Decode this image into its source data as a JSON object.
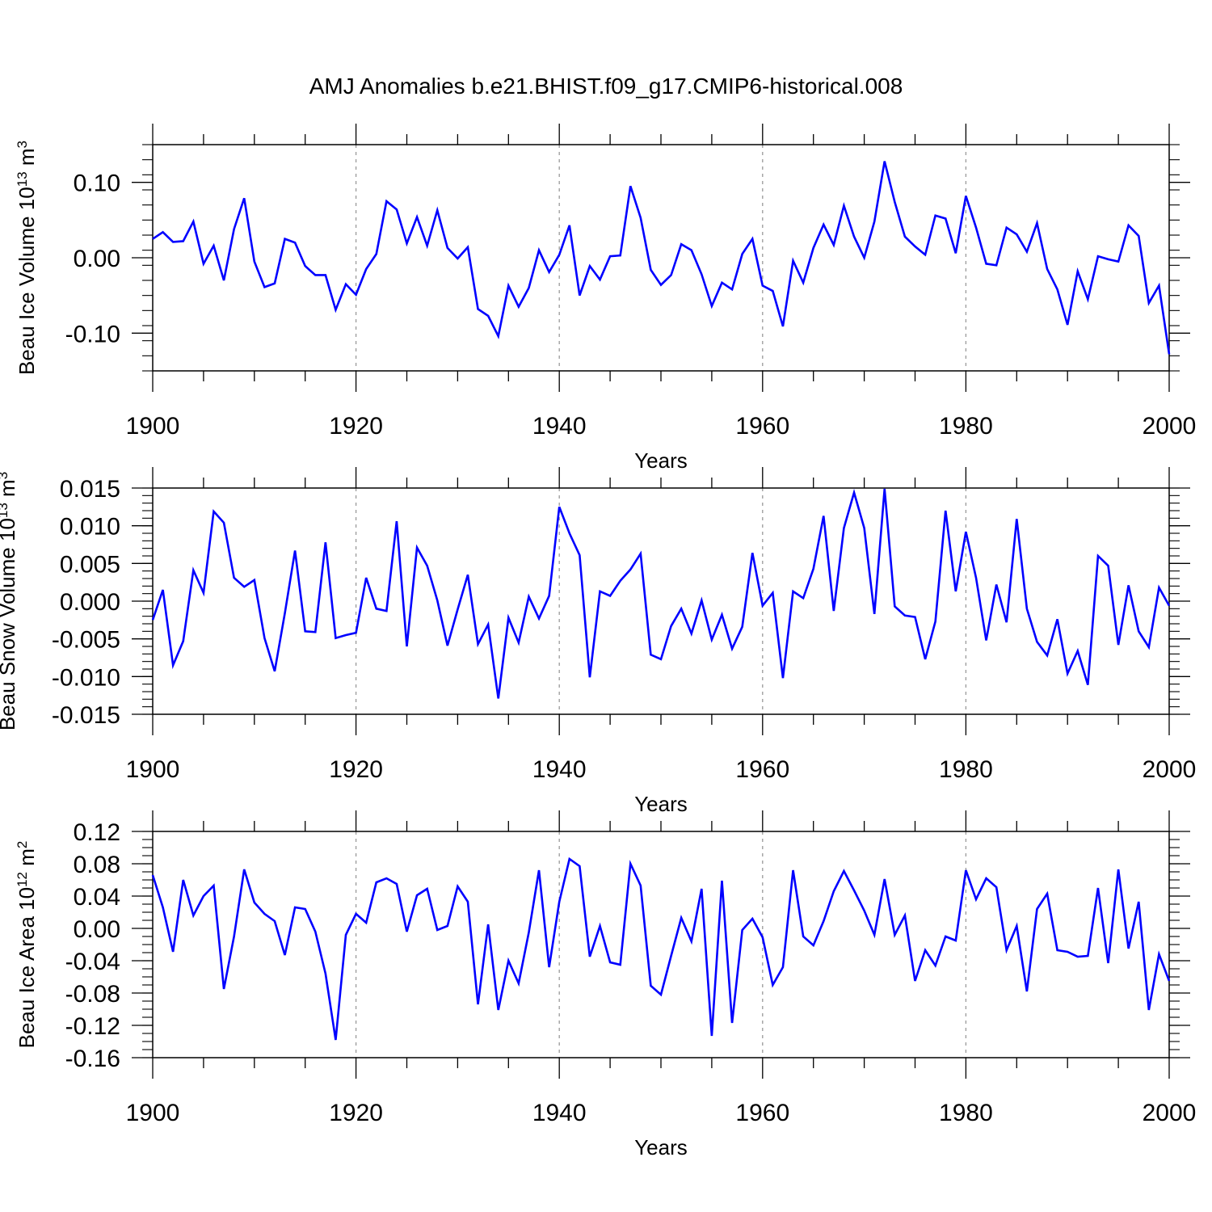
{
  "chart_data": {
    "type": "line",
    "title": "AMJ Anomalies b.e21.BHIST.f09_g17.CMIP6-historical.008",
    "x": [
      1900,
      1901,
      1902,
      1903,
      1904,
      1905,
      1906,
      1907,
      1908,
      1909,
      1910,
      1911,
      1912,
      1913,
      1914,
      1915,
      1916,
      1917,
      1918,
      1919,
      1920,
      1921,
      1922,
      1923,
      1924,
      1925,
      1926,
      1927,
      1928,
      1929,
      1930,
      1931,
      1932,
      1933,
      1934,
      1935,
      1936,
      1937,
      1938,
      1939,
      1940,
      1941,
      1942,
      1943,
      1944,
      1945,
      1946,
      1947,
      1948,
      1949,
      1950,
      1951,
      1952,
      1953,
      1954,
      1955,
      1956,
      1957,
      1958,
      1959,
      1960,
      1961,
      1962,
      1963,
      1964,
      1965,
      1966,
      1967,
      1968,
      1969,
      1970,
      1971,
      1972,
      1973,
      1974,
      1975,
      1976,
      1977,
      1978,
      1979,
      1980,
      1981,
      1982,
      1983,
      1984,
      1985,
      1986,
      1987,
      1988,
      1989,
      1990,
      1991,
      1992,
      1993,
      1994,
      1995,
      1996,
      1997,
      1998,
      1999,
      2000
    ],
    "xlim": [
      1900,
      2000
    ],
    "grid": "vertical dashed at major x ticks",
    "line_color": "#0000ff",
    "panels": [
      {
        "name": "ice-volume",
        "xlabel": "Years",
        "ylabel_main": "Beau Ice Volume 10",
        "ylabel_exp": "13",
        "ylabel_unit": " m",
        "ylabel_unit_exp": "3",
        "ylim": [
          -0.15,
          0.15
        ],
        "yticks": [
          -0.1,
          0.0,
          0.1
        ],
        "ytick_labels": [
          "-0.10",
          "0.00",
          "0.10"
        ],
        "yminor_step": 0.02,
        "xticks": [
          1900,
          1920,
          1940,
          1960,
          1980,
          2000
        ],
        "xtick_labels": [
          "1900",
          "1920",
          "1940",
          "1960",
          "1980",
          "2000"
        ],
        "values": [
          0.025,
          0.034,
          0.021,
          0.022,
          0.048,
          -0.008,
          0.016,
          -0.03,
          0.038,
          0.079,
          -0.005,
          -0.039,
          -0.034,
          0.025,
          0.02,
          -0.011,
          -0.023,
          -0.023,
          -0.069,
          -0.035,
          -0.049,
          -0.015,
          0.005,
          0.075,
          0.064,
          0.019,
          0.054,
          0.016,
          0.063,
          0.013,
          -0.001,
          0.014,
          -0.068,
          -0.077,
          -0.104,
          -0.037,
          -0.065,
          -0.04,
          0.01,
          -0.019,
          0.004,
          0.043,
          -0.05,
          -0.011,
          -0.029,
          0.002,
          0.003,
          0.095,
          0.053,
          -0.016,
          -0.036,
          -0.023,
          0.018,
          0.01,
          -0.022,
          -0.064,
          -0.033,
          -0.042,
          0.005,
          0.025,
          -0.037,
          -0.044,
          -0.091,
          -0.004,
          -0.033,
          0.013,
          0.044,
          0.017,
          0.069,
          0.028,
          0.0,
          0.048,
          0.128,
          0.074,
          0.028,
          0.015,
          0.004,
          0.056,
          0.052,
          0.006,
          0.082,
          0.04,
          -0.008,
          -0.01,
          0.04,
          0.031,
          0.008,
          0.046,
          -0.015,
          -0.042,
          -0.089,
          -0.018,
          -0.055,
          0.002,
          -0.002,
          -0.005,
          0.043,
          0.029,
          -0.06,
          -0.037,
          -0.128
        ]
      },
      {
        "name": "snow-volume",
        "xlabel": "Years",
        "ylabel_main": "Beau Snow Volume 10",
        "ylabel_exp": "13",
        "ylabel_unit": " m",
        "ylabel_unit_exp": "3",
        "ylim": [
          -0.015,
          0.015
        ],
        "yticks": [
          -0.015,
          -0.01,
          -0.005,
          0.0,
          0.005,
          0.01,
          0.015
        ],
        "ytick_labels": [
          "-0.015",
          "-0.010",
          "-0.005",
          "0.000",
          "0.005",
          "0.010",
          "0.015"
        ],
        "yminor_step": 0.001,
        "xticks": [
          1900,
          1920,
          1940,
          1960,
          1980,
          2000
        ],
        "xtick_labels": [
          "1900",
          "1920",
          "1940",
          "1960",
          "1980",
          "2000"
        ],
        "values": [
          -0.0025,
          0.0015,
          -0.0085,
          -0.0053,
          0.0041,
          0.0011,
          0.0119,
          0.0104,
          0.0031,
          0.0019,
          0.0028,
          -0.0049,
          -0.0093,
          -0.0016,
          0.0067,
          -0.004,
          -0.0041,
          0.0078,
          -0.0049,
          -0.0045,
          -0.0042,
          0.0031,
          -0.001,
          -0.0013,
          0.0106,
          -0.006,
          0.0071,
          0.0047,
          0.0001,
          -0.0059,
          -0.0011,
          0.0035,
          -0.0057,
          -0.0031,
          -0.0129,
          -0.0022,
          -0.0055,
          0.0006,
          -0.0023,
          0.0007,
          0.0125,
          0.009,
          0.0061,
          -0.0101,
          0.0013,
          0.0007,
          0.0027,
          0.0042,
          0.0063,
          -0.0071,
          -0.0077,
          -0.0033,
          -0.001,
          -0.0043,
          0.0001,
          -0.0051,
          -0.0018,
          -0.0063,
          -0.0034,
          0.0064,
          -0.0006,
          0.0011,
          -0.0102,
          0.0013,
          0.0004,
          0.0043,
          0.0113,
          -0.0013,
          0.0097,
          0.0144,
          0.0097,
          -0.0017,
          0.0149,
          -0.0007,
          -0.0019,
          -0.0021,
          -0.0077,
          -0.0027,
          0.012,
          0.0013,
          0.0092,
          0.0031,
          -0.0052,
          0.0022,
          -0.0028,
          0.0109,
          -0.001,
          -0.0054,
          -0.0072,
          -0.0024,
          -0.0096,
          -0.0066,
          -0.0111,
          0.006,
          0.0047,
          -0.0058,
          0.0021,
          -0.004,
          -0.0061,
          0.0018,
          -0.0006
        ]
      },
      {
        "name": "ice-area",
        "xlabel": "Years",
        "ylabel_main": "Beau Ice Area 10",
        "ylabel_exp": "12",
        "ylabel_unit": " m",
        "ylabel_unit_exp": "2",
        "ylim": [
          -0.16,
          0.12
        ],
        "yticks": [
          -0.16,
          -0.12,
          -0.08,
          -0.04,
          0.0,
          0.04,
          0.08,
          0.12
        ],
        "ytick_labels": [
          "-0.16",
          "-0.12",
          "-0.08",
          "-0.04",
          "0.00",
          "0.04",
          "0.08",
          "0.12"
        ],
        "yminor_step": 0.01,
        "xticks": [
          1900,
          1920,
          1940,
          1960,
          1980,
          2000
        ],
        "xtick_labels": [
          "1900",
          "1920",
          "1940",
          "1960",
          "1980",
          "2000"
        ],
        "values": [
          0.066,
          0.026,
          -0.029,
          0.06,
          0.016,
          0.04,
          0.053,
          -0.075,
          -0.01,
          0.073,
          0.032,
          0.018,
          0.009,
          -0.033,
          0.026,
          0.024,
          -0.004,
          -0.056,
          -0.138,
          -0.008,
          0.018,
          0.007,
          0.057,
          0.062,
          0.055,
          -0.004,
          0.041,
          0.049,
          -0.002,
          0.003,
          0.052,
          0.033,
          -0.094,
          0.005,
          -0.101,
          -0.04,
          -0.068,
          -0.005,
          0.072,
          -0.048,
          0.033,
          0.086,
          0.077,
          -0.035,
          0.003,
          -0.042,
          -0.045,
          0.08,
          0.053,
          -0.071,
          -0.082,
          -0.034,
          0.013,
          -0.016,
          0.049,
          -0.133,
          0.059,
          -0.117,
          -0.002,
          0.012,
          -0.011,
          -0.07,
          -0.048,
          0.072,
          -0.01,
          -0.021,
          0.009,
          0.046,
          0.071,
          0.047,
          0.022,
          -0.008,
          0.061,
          -0.008,
          0.016,
          -0.065,
          -0.027,
          -0.046,
          -0.01,
          -0.015,
          0.072,
          0.036,
          0.062,
          0.051,
          -0.027,
          0.003,
          -0.078,
          0.024,
          0.043,
          -0.027,
          -0.029,
          -0.035,
          -0.034,
          0.05,
          -0.043,
          0.073,
          -0.025,
          0.033,
          -0.101,
          -0.032,
          -0.065
        ]
      }
    ]
  }
}
